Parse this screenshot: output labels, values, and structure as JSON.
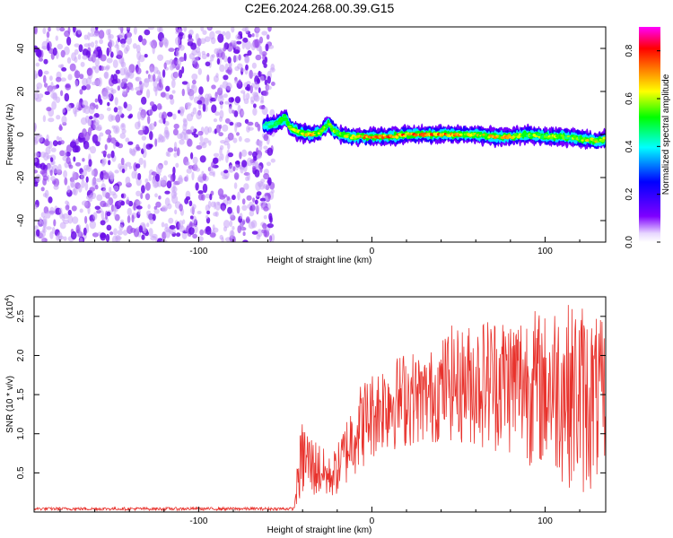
{
  "title": "C2E6.2024.268.00.39.G15",
  "chart_data": [
    {
      "type": "heatmap",
      "xlabel": "Height of straight line (km)",
      "ylabel": "Frequency (Hz)",
      "xlim": [
        -195,
        135
      ],
      "ylim": [
        -50,
        50
      ],
      "x_ticks": [
        -100,
        0,
        100
      ],
      "x_tick_labels": [
        "-100",
        "0",
        "100"
      ],
      "y_ticks": [
        -40,
        -20,
        0,
        20,
        40
      ],
      "y_tick_labels": [
        "-40",
        "-20",
        "0",
        "20",
        "40"
      ],
      "colorbar": {
        "label": "Normalized spectral amplitude",
        "range": [
          0,
          0.9
        ],
        "ticks": [
          0.0,
          0.2,
          0.4,
          0.6,
          0.8
        ],
        "tick_labels": [
          "0.0",
          "0.2",
          "0.4",
          "0.6",
          "0.8"
        ],
        "colormap": [
          "#ffffff",
          "#7f00ff",
          "#0000ff",
          "#00ffff",
          "#00ff00",
          "#ffff00",
          "#ff8000",
          "#ff0000",
          "#ff00ff"
        ]
      },
      "noise_region_x": [
        -195,
        -60
      ],
      "signal_ridge": {
        "x": [
          -62,
          -55,
          -50,
          -47,
          -42,
          -35,
          -30,
          -25,
          -22,
          -18,
          -12,
          0,
          10,
          20,
          30,
          40,
          50,
          60,
          70,
          80,
          90,
          100,
          110,
          120,
          130,
          135
        ],
        "frequency": [
          4,
          5,
          8,
          3,
          1,
          0,
          1,
          5,
          2,
          0,
          -1,
          -1,
          -1,
          0,
          0,
          0,
          0,
          0,
          -1,
          -1,
          0,
          -1,
          -1,
          -2,
          -3,
          -2
        ],
        "peak_amplitude": [
          0.45,
          0.5,
          0.55,
          0.6,
          0.65,
          0.7,
          0.65,
          0.6,
          0.6,
          0.6,
          0.65,
          0.8,
          0.8,
          0.8,
          0.85,
          0.8,
          0.7,
          0.65,
          0.7,
          0.7,
          0.6,
          0.6,
          0.6,
          0.6,
          0.7,
          0.6
        ]
      }
    },
    {
      "type": "line",
      "xlabel": "Height of straight line (km)",
      "ylabel": "SNR (10 * v/v)",
      "y_multiplier": "(x10",
      "y_multiplier_exp": "4",
      "xlim": [
        -195,
        135
      ],
      "ylim": [
        0,
        27500
      ],
      "x_ticks": [
        -100,
        0,
        100
      ],
      "x_tick_labels": [
        "-100",
        "0",
        "100"
      ],
      "y_ticks": [
        5000,
        10000,
        15000,
        20000,
        25000
      ],
      "y_tick_labels": [
        "0.5",
        "1.0",
        "1.5",
        "2.0",
        "2.5"
      ],
      "series": [
        {
          "color": "#e8322c",
          "x": [
            -195,
            -150,
            -100,
            -60,
            -45,
            -42,
            -40,
            -37,
            -35,
            -30,
            -25,
            -20,
            -15,
            -10,
            -5,
            0,
            5,
            10,
            15,
            20,
            25,
            30,
            35,
            40,
            45,
            50,
            55,
            60,
            65,
            70,
            75,
            80,
            85,
            90,
            95,
            100,
            105,
            110,
            115,
            120,
            125,
            130,
            135
          ],
          "envelope_high": [
            600,
            600,
            600,
            600,
            600,
            9000,
            12000,
            11000,
            10000,
            9000,
            7000,
            8500,
            12000,
            15500,
            17000,
            18000,
            19000,
            20500,
            20000,
            21000,
            20500,
            20000,
            21000,
            22000,
            24000,
            23500,
            24000,
            24500,
            25000,
            25500,
            25500,
            25500,
            26000,
            26500,
            26000,
            25500,
            27000,
            27500,
            26500,
            27500,
            26000,
            25000,
            24000
          ],
          "envelope_low": [
            200,
            200,
            200,
            200,
            200,
            1000,
            1500,
            1500,
            1500,
            1500,
            1500,
            2000,
            3000,
            4500,
            5500,
            6500,
            7500,
            7500,
            8000,
            8000,
            8500,
            8500,
            8500,
            9000,
            9000,
            8500,
            8500,
            8000,
            8000,
            7500,
            7500,
            7000,
            6500,
            6000,
            5500,
            5000,
            4500,
            3500,
            3000,
            1500,
            2000,
            3000,
            3500
          ]
        }
      ]
    }
  ]
}
